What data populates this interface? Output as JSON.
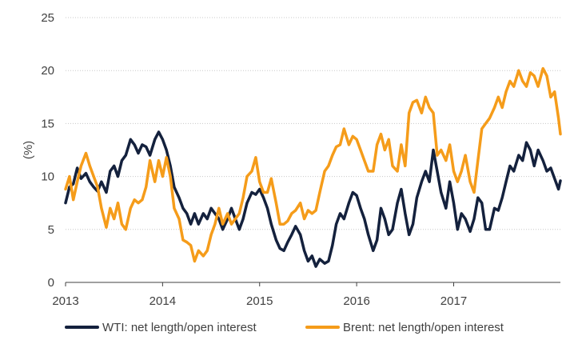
{
  "chart_data": {
    "type": "line",
    "title": "",
    "xlabel": "",
    "ylabel": "(%)",
    "ylim": [
      0,
      25
    ],
    "yticks": [
      "0",
      "5",
      "10",
      "15",
      "20",
      "25"
    ],
    "xlim": [
      2013.0,
      2017.95
    ],
    "xticks": [
      "2013",
      "2014",
      "2015",
      "2016",
      "2017"
    ],
    "grid": "horizontal",
    "legend_position": "bottom",
    "series": [
      {
        "name": "WTI: net length/open interest",
        "color": "#14213d",
        "points": [
          [
            2013.0,
            7.5
          ],
          [
            2013.04,
            9.0
          ],
          [
            2013.08,
            9.3
          ],
          [
            2013.12,
            10.8
          ],
          [
            2013.16,
            9.8
          ],
          [
            2013.21,
            10.3
          ],
          [
            2013.25,
            9.5
          ],
          [
            2013.29,
            9.0
          ],
          [
            2013.33,
            8.6
          ],
          [
            2013.37,
            9.5
          ],
          [
            2013.42,
            8.5
          ],
          [
            2013.46,
            10.5
          ],
          [
            2013.5,
            11.0
          ],
          [
            2013.54,
            10.0
          ],
          [
            2013.58,
            11.5
          ],
          [
            2013.62,
            12.0
          ],
          [
            2013.67,
            13.5
          ],
          [
            2013.71,
            13.0
          ],
          [
            2013.75,
            12.2
          ],
          [
            2013.79,
            13.0
          ],
          [
            2013.83,
            12.8
          ],
          [
            2013.87,
            12.0
          ],
          [
            2013.92,
            13.5
          ],
          [
            2013.96,
            14.2
          ],
          [
            2014.0,
            13.5
          ],
          [
            2014.04,
            12.5
          ],
          [
            2014.08,
            11.0
          ],
          [
            2014.12,
            9.0
          ],
          [
            2014.17,
            8.0
          ],
          [
            2014.21,
            7.0
          ],
          [
            2014.25,
            6.5
          ],
          [
            2014.29,
            5.5
          ],
          [
            2014.33,
            6.5
          ],
          [
            2014.37,
            5.5
          ],
          [
            2014.42,
            6.5
          ],
          [
            2014.46,
            6.0
          ],
          [
            2014.5,
            7.0
          ],
          [
            2014.54,
            6.5
          ],
          [
            2014.58,
            6.0
          ],
          [
            2014.62,
            5.0
          ],
          [
            2014.67,
            6.0
          ],
          [
            2014.71,
            7.0
          ],
          [
            2014.75,
            6.0
          ],
          [
            2014.79,
            5.0
          ],
          [
            2014.83,
            6.0
          ],
          [
            2014.87,
            7.5
          ],
          [
            2014.92,
            8.5
          ],
          [
            2014.96,
            8.3
          ],
          [
            2015.0,
            8.8
          ],
          [
            2015.04,
            8.0
          ],
          [
            2015.08,
            7.0
          ],
          [
            2015.12,
            5.5
          ],
          [
            2015.17,
            4.0
          ],
          [
            2015.21,
            3.2
          ],
          [
            2015.25,
            3.0
          ],
          [
            2015.29,
            3.8
          ],
          [
            2015.33,
            4.5
          ],
          [
            2015.37,
            5.3
          ],
          [
            2015.42,
            4.5
          ],
          [
            2015.46,
            3.0
          ],
          [
            2015.5,
            2.0
          ],
          [
            2015.54,
            2.5
          ],
          [
            2015.58,
            1.5
          ],
          [
            2015.62,
            2.2
          ],
          [
            2015.67,
            1.8
          ],
          [
            2015.71,
            2.0
          ],
          [
            2015.75,
            3.5
          ],
          [
            2015.79,
            5.5
          ],
          [
            2015.83,
            6.5
          ],
          [
            2015.87,
            6.0
          ],
          [
            2015.92,
            7.5
          ],
          [
            2015.96,
            8.5
          ],
          [
            2016.0,
            8.2
          ],
          [
            2016.04,
            7.0
          ],
          [
            2016.08,
            6.0
          ],
          [
            2016.12,
            4.5
          ],
          [
            2016.17,
            3.0
          ],
          [
            2016.21,
            4.0
          ],
          [
            2016.25,
            7.0
          ],
          [
            2016.29,
            6.0
          ],
          [
            2016.33,
            4.5
          ],
          [
            2016.37,
            5.0
          ],
          [
            2016.42,
            7.5
          ],
          [
            2016.46,
            8.8
          ],
          [
            2016.5,
            6.5
          ],
          [
            2016.54,
            4.5
          ],
          [
            2016.58,
            5.5
          ],
          [
            2016.62,
            8.0
          ],
          [
            2016.67,
            9.5
          ],
          [
            2016.71,
            10.5
          ],
          [
            2016.75,
            9.5
          ],
          [
            2016.79,
            12.5
          ],
          [
            2016.83,
            10.5
          ],
          [
            2016.87,
            8.5
          ],
          [
            2016.92,
            7.0
          ],
          [
            2016.96,
            9.5
          ],
          [
            2017.0,
            7.5
          ],
          [
            2017.04,
            5.0
          ],
          [
            2017.08,
            6.5
          ],
          [
            2017.12,
            6.0
          ],
          [
            2017.17,
            4.8
          ],
          [
            2017.21,
            6.0
          ],
          [
            2017.25,
            8.0
          ],
          [
            2017.29,
            7.5
          ],
          [
            2017.33,
            5.0
          ],
          [
            2017.37,
            5.0
          ],
          [
            2017.42,
            7.0
          ],
          [
            2017.46,
            6.8
          ],
          [
            2017.5,
            8.0
          ],
          [
            2017.54,
            9.5
          ],
          [
            2017.58,
            11.0
          ],
          [
            2017.62,
            10.5
          ],
          [
            2017.67,
            12.0
          ],
          [
            2017.71,
            11.5
          ],
          [
            2017.75,
            13.2
          ],
          [
            2017.79,
            12.5
          ],
          [
            2017.83,
            11.0
          ],
          [
            2017.87,
            12.5
          ],
          [
            2017.92,
            11.5
          ],
          [
            2017.96,
            10.5
          ],
          [
            2018.0,
            10.8
          ],
          [
            2018.04,
            9.8
          ],
          [
            2018.08,
            8.8
          ],
          [
            2018.1,
            9.6
          ]
        ]
      },
      {
        "name": "Brent: net length/open interest",
        "color": "#f59c1a",
        "points": [
          [
            2013.0,
            8.8
          ],
          [
            2013.04,
            10.0
          ],
          [
            2013.08,
            7.8
          ],
          [
            2013.12,
            9.5
          ],
          [
            2013.16,
            11.0
          ],
          [
            2013.21,
            12.2
          ],
          [
            2013.25,
            11.0
          ],
          [
            2013.29,
            10.0
          ],
          [
            2013.33,
            9.0
          ],
          [
            2013.37,
            7.0
          ],
          [
            2013.42,
            5.2
          ],
          [
            2013.46,
            7.0
          ],
          [
            2013.5,
            6.0
          ],
          [
            2013.54,
            7.5
          ],
          [
            2013.58,
            5.5
          ],
          [
            2013.62,
            5.0
          ],
          [
            2013.67,
            7.0
          ],
          [
            2013.71,
            7.8
          ],
          [
            2013.75,
            7.5
          ],
          [
            2013.79,
            7.8
          ],
          [
            2013.83,
            9.0
          ],
          [
            2013.87,
            11.5
          ],
          [
            2013.92,
            9.5
          ],
          [
            2013.96,
            11.5
          ],
          [
            2014.0,
            10.0
          ],
          [
            2014.04,
            11.8
          ],
          [
            2014.08,
            10.0
          ],
          [
            2014.12,
            7.0
          ],
          [
            2014.17,
            6.0
          ],
          [
            2014.21,
            4.0
          ],
          [
            2014.25,
            3.8
          ],
          [
            2014.29,
            3.5
          ],
          [
            2014.33,
            2.0
          ],
          [
            2014.37,
            3.0
          ],
          [
            2014.42,
            2.5
          ],
          [
            2014.46,
            3.0
          ],
          [
            2014.5,
            4.5
          ],
          [
            2014.54,
            5.5
          ],
          [
            2014.58,
            7.0
          ],
          [
            2014.62,
            5.5
          ],
          [
            2014.67,
            6.5
          ],
          [
            2014.71,
            5.5
          ],
          [
            2014.75,
            6.0
          ],
          [
            2014.79,
            6.5
          ],
          [
            2014.83,
            8.0
          ],
          [
            2014.87,
            10.0
          ],
          [
            2014.92,
            10.5
          ],
          [
            2014.96,
            11.8
          ],
          [
            2015.0,
            9.5
          ],
          [
            2015.04,
            8.5
          ],
          [
            2015.08,
            8.5
          ],
          [
            2015.12,
            9.8
          ],
          [
            2015.17,
            7.5
          ],
          [
            2015.21,
            5.5
          ],
          [
            2015.25,
            5.5
          ],
          [
            2015.29,
            5.8
          ],
          [
            2015.33,
            6.5
          ],
          [
            2015.37,
            6.8
          ],
          [
            2015.42,
            7.5
          ],
          [
            2015.46,
            6.0
          ],
          [
            2015.5,
            6.8
          ],
          [
            2015.54,
            6.5
          ],
          [
            2015.58,
            6.8
          ],
          [
            2015.62,
            8.5
          ],
          [
            2015.67,
            10.5
          ],
          [
            2015.71,
            11.0
          ],
          [
            2015.75,
            12.0
          ],
          [
            2015.79,
            12.8
          ],
          [
            2015.83,
            13.0
          ],
          [
            2015.87,
            14.5
          ],
          [
            2015.92,
            13.0
          ],
          [
            2015.96,
            13.8
          ],
          [
            2016.0,
            13.5
          ],
          [
            2016.04,
            12.5
          ],
          [
            2016.08,
            11.5
          ],
          [
            2016.12,
            10.5
          ],
          [
            2016.17,
            10.5
          ],
          [
            2016.21,
            13.0
          ],
          [
            2016.25,
            14.0
          ],
          [
            2016.29,
            12.5
          ],
          [
            2016.33,
            13.5
          ],
          [
            2016.37,
            11.0
          ],
          [
            2016.42,
            10.5
          ],
          [
            2016.46,
            13.0
          ],
          [
            2016.5,
            11.0
          ],
          [
            2016.54,
            16.0
          ],
          [
            2016.58,
            17.0
          ],
          [
            2016.62,
            17.2
          ],
          [
            2016.67,
            16.0
          ],
          [
            2016.71,
            17.5
          ],
          [
            2016.75,
            16.5
          ],
          [
            2016.79,
            16.0
          ],
          [
            2016.83,
            12.0
          ],
          [
            2016.87,
            12.5
          ],
          [
            2016.92,
            11.5
          ],
          [
            2016.96,
            13.0
          ],
          [
            2017.0,
            10.5
          ],
          [
            2017.04,
            9.5
          ],
          [
            2017.08,
            10.5
          ],
          [
            2017.12,
            12.0
          ],
          [
            2017.17,
            9.5
          ],
          [
            2017.21,
            8.5
          ],
          [
            2017.25,
            11.5
          ],
          [
            2017.29,
            14.5
          ],
          [
            2017.33,
            15.0
          ],
          [
            2017.37,
            15.5
          ],
          [
            2017.42,
            16.5
          ],
          [
            2017.46,
            17.5
          ],
          [
            2017.5,
            16.5
          ],
          [
            2017.54,
            18.0
          ],
          [
            2017.58,
            19.0
          ],
          [
            2017.62,
            18.5
          ],
          [
            2017.67,
            20.0
          ],
          [
            2017.71,
            19.0
          ],
          [
            2017.75,
            18.5
          ],
          [
            2017.79,
            19.8
          ],
          [
            2017.83,
            19.5
          ],
          [
            2017.87,
            18.5
          ],
          [
            2017.92,
            20.2
          ],
          [
            2017.96,
            19.5
          ],
          [
            2018.0,
            17.5
          ],
          [
            2018.04,
            18.0
          ],
          [
            2018.08,
            15.5
          ],
          [
            2018.1,
            14.0
          ]
        ]
      }
    ]
  }
}
